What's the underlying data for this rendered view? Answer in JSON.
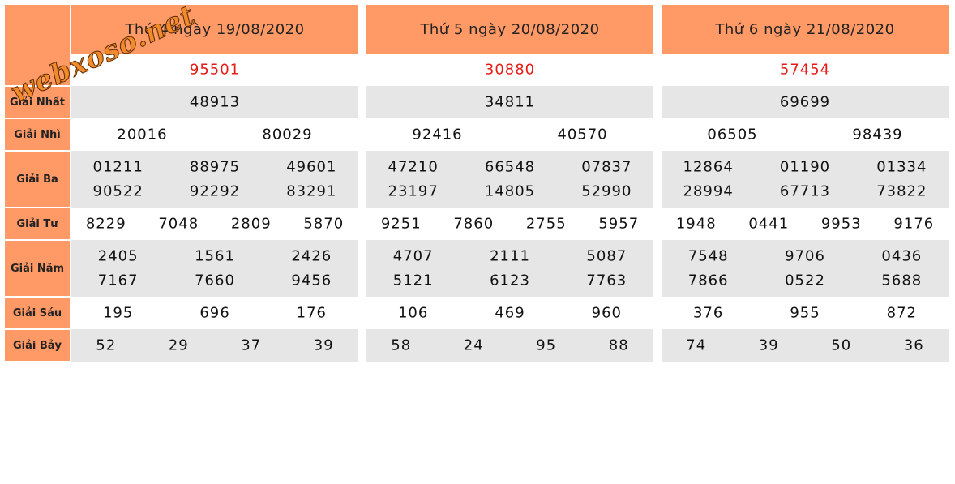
{
  "watermark": "webxoso.net",
  "labels": [
    "Giải Nhất",
    "Giải Nhì",
    "Giải Ba",
    "Giải Tư",
    "Giải Năm",
    "Giải Sáu",
    "Giải Bảy"
  ],
  "days": [
    {
      "title": "Thứ 4 ngày 19/08/2020",
      "special": "95501",
      "prizes": [
        [
          "48913"
        ],
        [
          "20016",
          "80029"
        ],
        [
          "01211",
          "88975",
          "49601",
          "90522",
          "92292",
          "83291"
        ],
        [
          "8229",
          "7048",
          "2809",
          "5870"
        ],
        [
          "2405",
          "1561",
          "2426",
          "7167",
          "7660",
          "9456"
        ],
        [
          "195",
          "696",
          "176"
        ],
        [
          "52",
          "29",
          "37",
          "39"
        ]
      ]
    },
    {
      "title": "Thứ 5 ngày 20/08/2020",
      "special": "30880",
      "prizes": [
        [
          "34811"
        ],
        [
          "92416",
          "40570"
        ],
        [
          "47210",
          "66548",
          "07837",
          "23197",
          "14805",
          "52990"
        ],
        [
          "9251",
          "7860",
          "2755",
          "5957"
        ],
        [
          "4707",
          "2111",
          "5087",
          "5121",
          "6123",
          "7763"
        ],
        [
          "106",
          "469",
          "960"
        ],
        [
          "58",
          "24",
          "95",
          "88"
        ]
      ]
    },
    {
      "title": "Thứ 6 ngày 21/08/2020",
      "special": "57454",
      "prizes": [
        [
          "69699"
        ],
        [
          "06505",
          "98439"
        ],
        [
          "12864",
          "01190",
          "01334",
          "28994",
          "67713",
          "73822"
        ],
        [
          "1948",
          "0441",
          "9953",
          "9176"
        ],
        [
          "7548",
          "9706",
          "0436",
          "7866",
          "0522",
          "5688"
        ],
        [
          "376",
          "955",
          "872"
        ],
        [
          "74",
          "39",
          "50",
          "36"
        ]
      ]
    }
  ]
}
